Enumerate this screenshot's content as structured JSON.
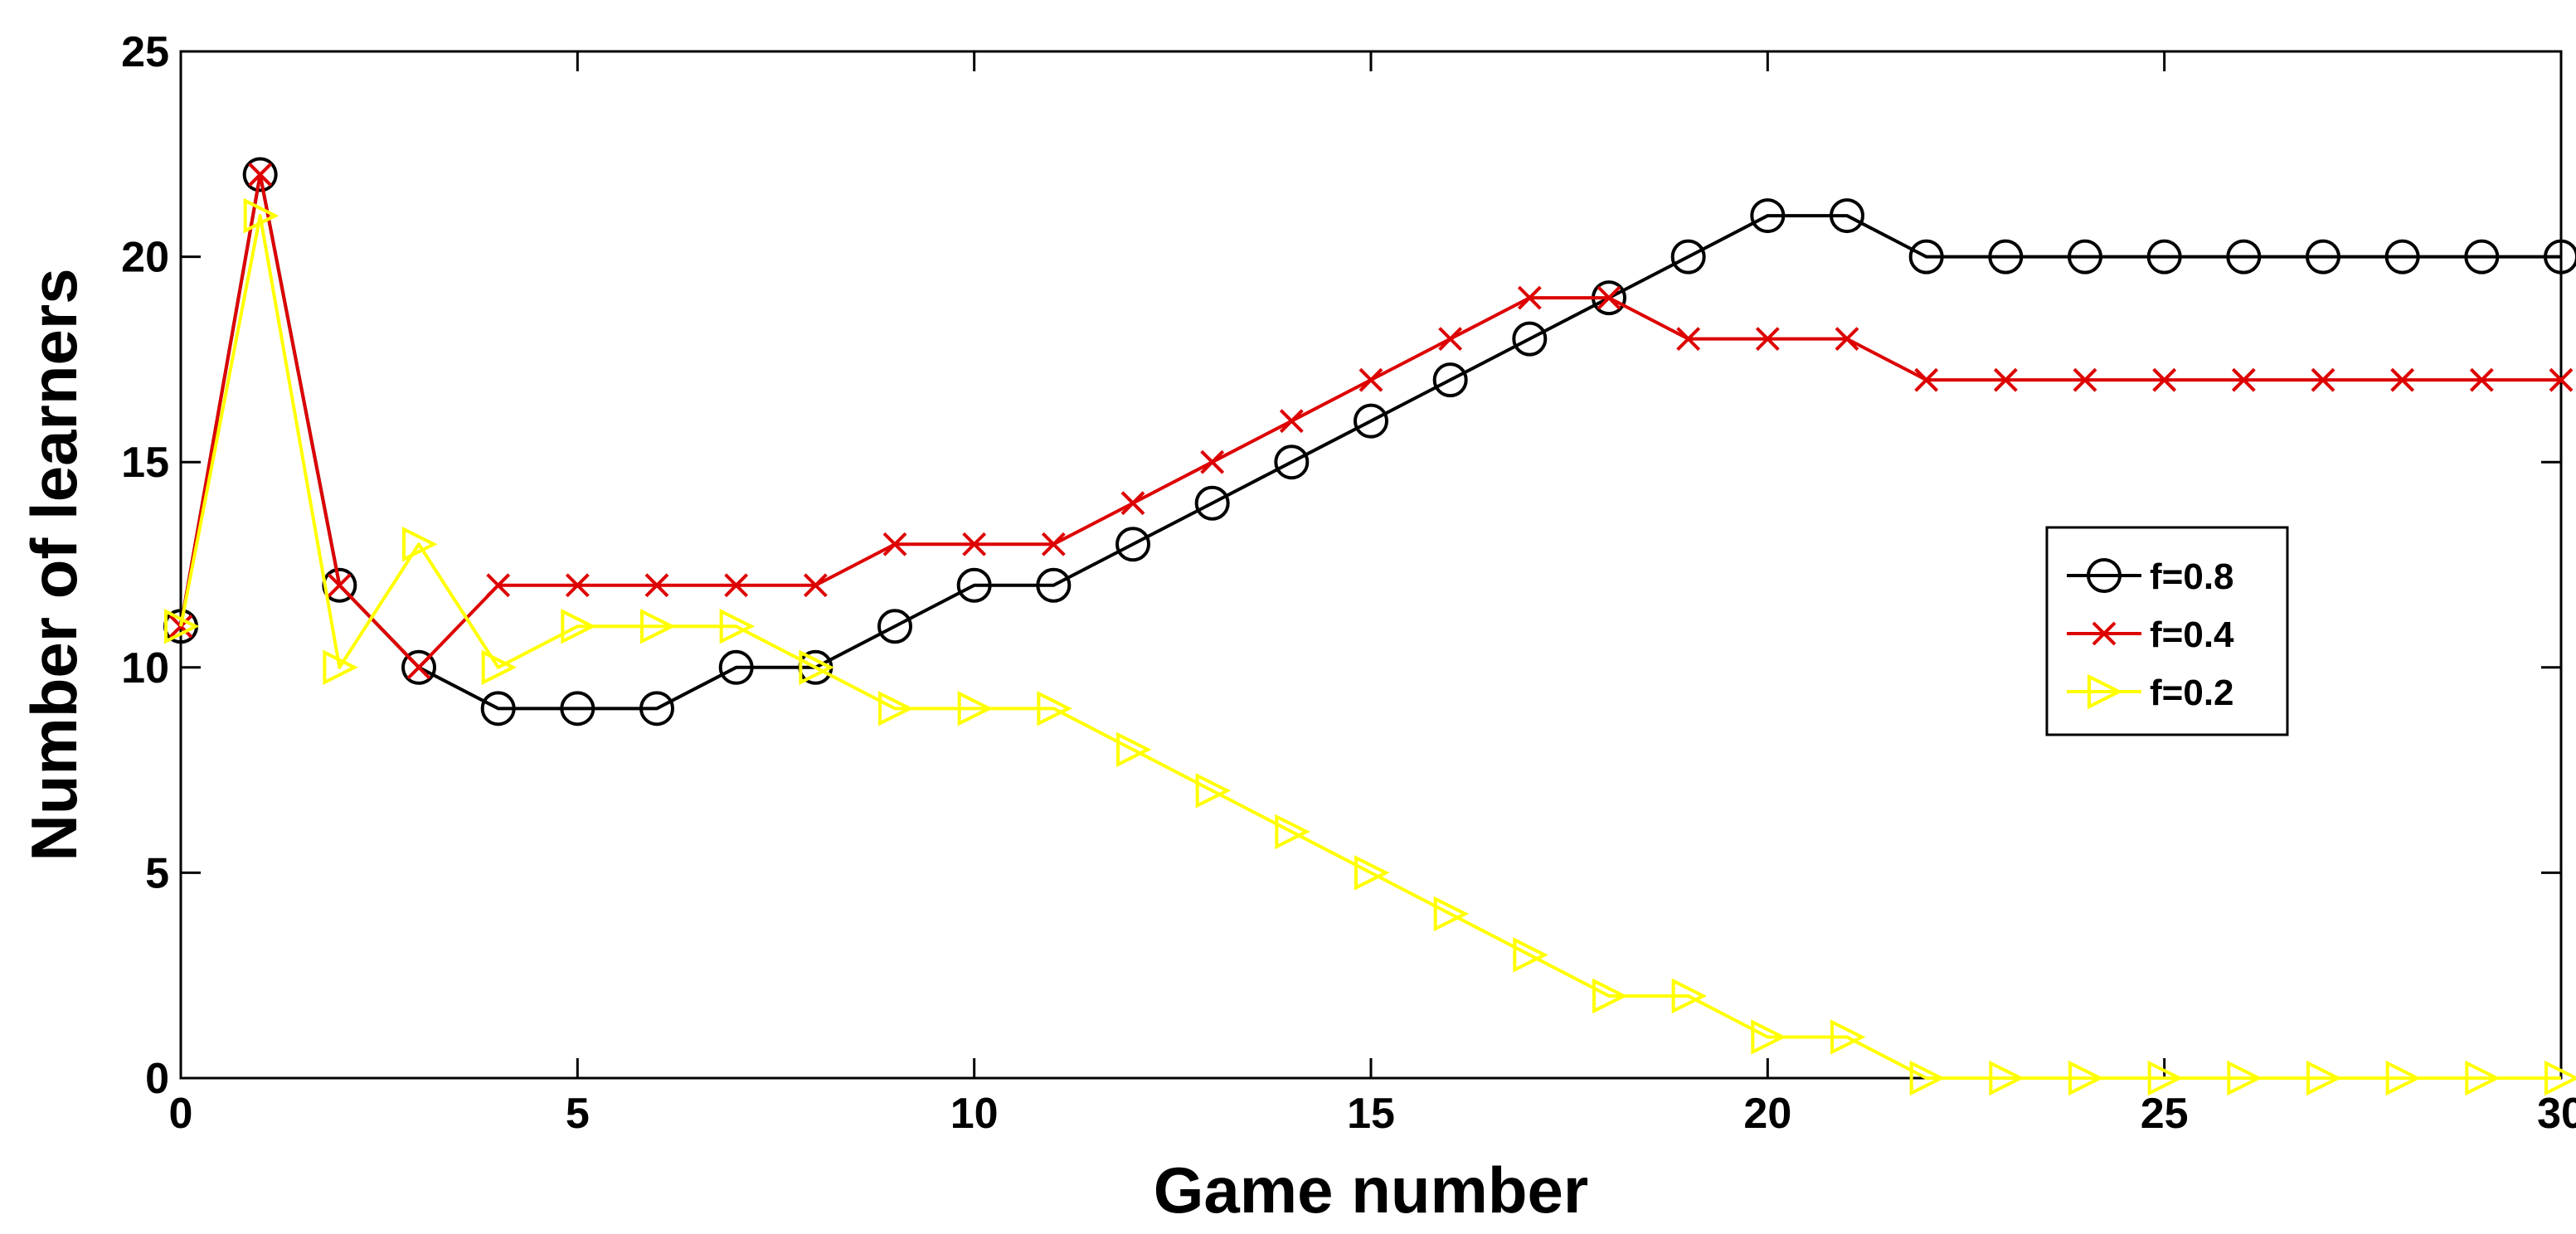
{
  "chart_data": {
    "type": "line",
    "title": "",
    "xlabel": "Game number",
    "ylabel": "Number of learners",
    "xlim": [
      0,
      30
    ],
    "ylim": [
      0,
      25
    ],
    "xticks": [
      0,
      5,
      10,
      15,
      20,
      25,
      30
    ],
    "yticks": [
      0,
      5,
      10,
      15,
      20,
      25
    ],
    "grid": false,
    "legend_position": "right",
    "x": [
      0,
      1,
      2,
      3,
      4,
      5,
      6,
      7,
      8,
      9,
      10,
      11,
      12,
      13,
      14,
      15,
      16,
      17,
      18,
      19,
      20,
      21,
      22,
      23,
      24,
      25,
      26,
      27,
      28,
      29,
      30
    ],
    "series": [
      {
        "name": "f=0.8",
        "color": "#000000",
        "marker": "circle",
        "values": [
          11,
          22,
          12,
          10,
          9,
          9,
          9,
          10,
          10,
          11,
          12,
          12,
          13,
          14,
          15,
          16,
          17,
          18,
          19,
          20,
          21,
          21,
          20,
          20,
          20,
          20,
          20,
          20,
          20,
          20,
          20
        ]
      },
      {
        "name": "f=0.4",
        "color": "#dd0000",
        "marker": "x",
        "values": [
          11,
          22,
          12,
          10,
          12,
          12,
          12,
          12,
          12,
          13,
          13,
          13,
          14,
          15,
          16,
          17,
          18,
          19,
          19,
          18,
          18,
          18,
          17,
          17,
          17,
          17,
          17,
          17,
          17,
          17,
          17
        ]
      },
      {
        "name": "f=0.2",
        "color": "#ffff00",
        "marker": "triangle-right",
        "values": [
          11,
          21,
          10,
          13,
          10,
          11,
          11,
          11,
          10,
          9,
          9,
          9,
          8,
          7,
          6,
          5,
          4,
          3,
          2,
          2,
          1,
          1,
          0,
          0,
          0,
          0,
          0,
          0,
          0,
          0,
          0
        ]
      }
    ]
  }
}
